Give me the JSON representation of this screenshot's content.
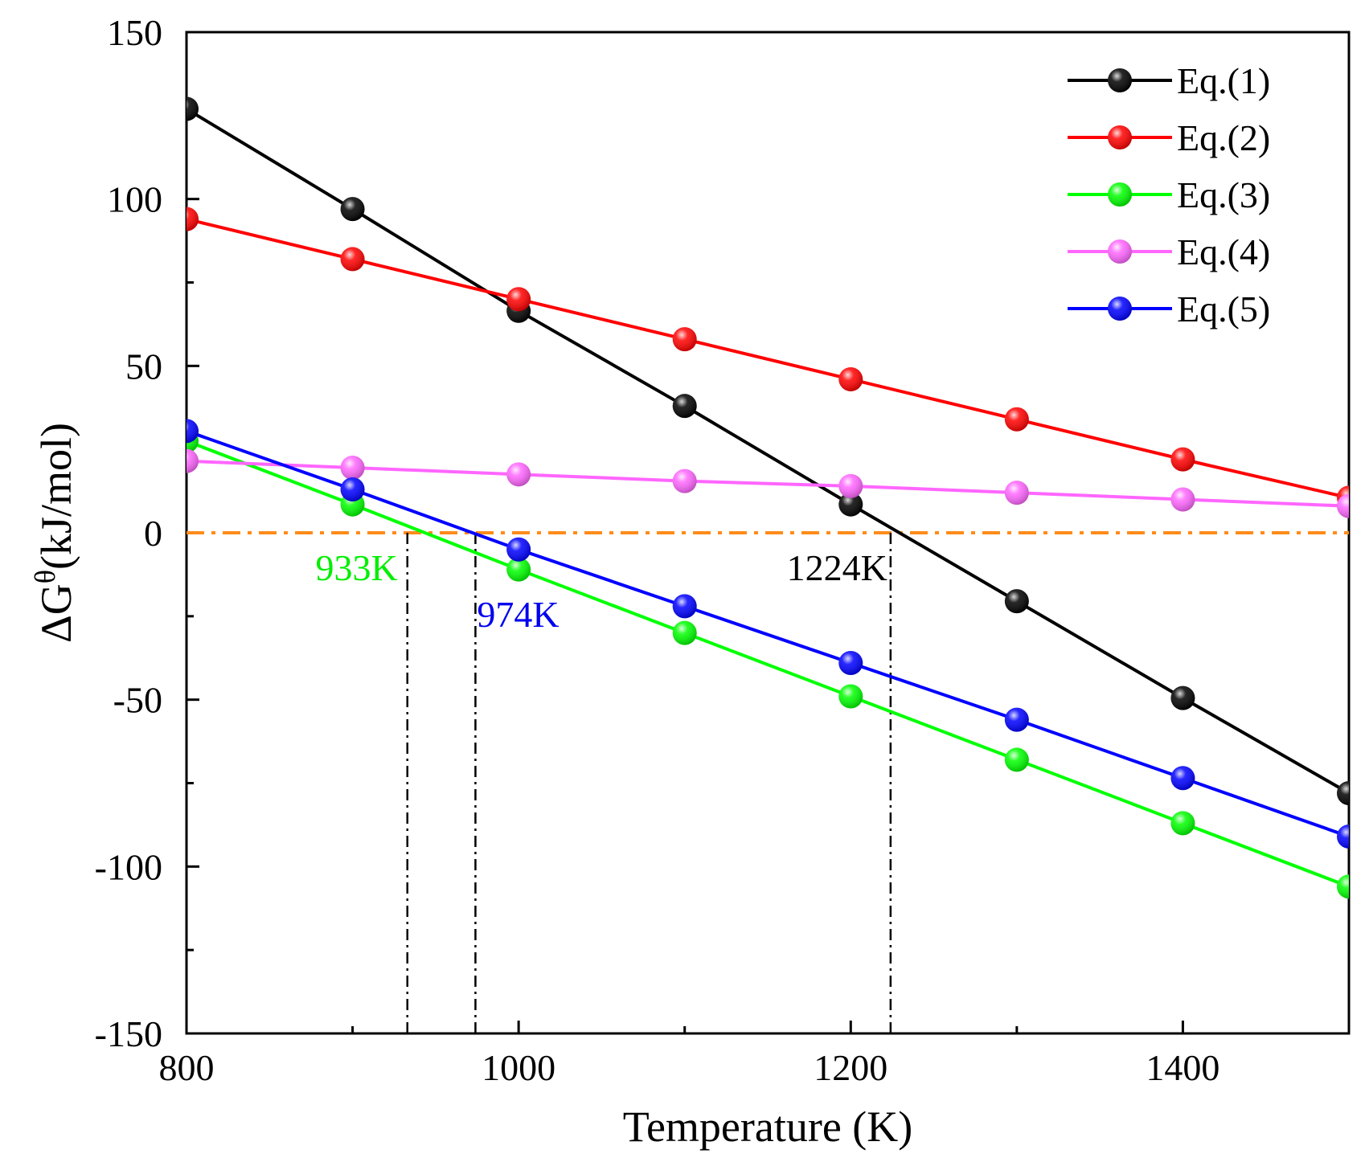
{
  "chart_data": {
    "type": "line",
    "xlabel": "Temperature (K)",
    "ylabel_main": "ΔG",
    "ylabel_sup": "θ",
    "ylabel_unit": "(kJ/mol)",
    "xlim": [
      800,
      1500
    ],
    "ylim": [
      -150,
      150
    ],
    "xticks": [
      800,
      1000,
      1200,
      1400
    ],
    "xtick_labels": [
      "800",
      "1000",
      "1200",
      "1400"
    ],
    "yticks": [
      -150,
      -100,
      -50,
      0,
      50,
      100,
      150
    ],
    "ytick_labels": [
      "-150",
      "-100",
      "-50",
      "0",
      "50",
      "100",
      "150"
    ],
    "x_minor_step": 100,
    "y_minor_step": 25,
    "legend_position": "top-right",
    "x": [
      800,
      900,
      1000,
      1100,
      1200,
      1300,
      1400,
      1500
    ],
    "series": [
      {
        "name": "Eq.(1)",
        "color": "#000000",
        "values": [
          127,
          97,
          66.5,
          38,
          8.5,
          -20.5,
          -49.5,
          -78
        ]
      },
      {
        "name": "Eq.(2)",
        "color": "#ff0000",
        "values": [
          94,
          82,
          70,
          58,
          46,
          34,
          22,
          10.5
        ]
      },
      {
        "name": "Eq.(3)",
        "color": "#00ff00",
        "values": [
          27.5,
          8.5,
          -11,
          -30,
          -49,
          -68,
          -87,
          -106
        ]
      },
      {
        "name": "Eq.(4)",
        "color": "#ff66ff",
        "values": [
          21.5,
          19.5,
          17.5,
          15.5,
          14,
          12,
          10,
          8
        ]
      },
      {
        "name": "Eq.(5)",
        "color": "#0000ff",
        "values": [
          30.5,
          13,
          -5,
          -22,
          -39,
          -56,
          -73.5,
          -91
        ]
      }
    ],
    "zero_line": {
      "y": 0,
      "color": "#ff8c1a"
    },
    "crossings": [
      {
        "x": 933,
        "label": "933K",
        "color": "#00ee00"
      },
      {
        "x": 974,
        "label": "974K",
        "color": "#0000ee"
      },
      {
        "x": 1224,
        "label": "1224K",
        "color": "#000000"
      }
    ]
  }
}
